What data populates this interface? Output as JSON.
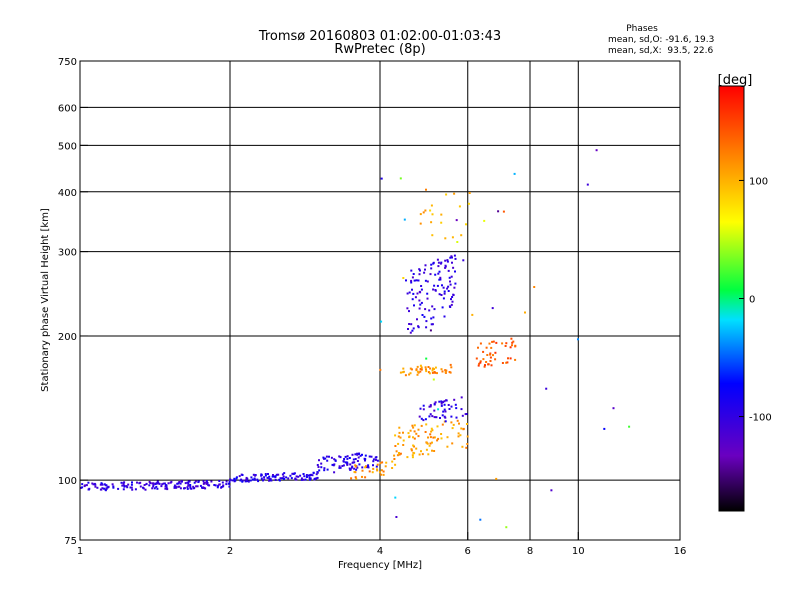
{
  "chart_data": {
    "type": "scatter",
    "title": "Tromsø 20160803 01:02:00-01:03:43",
    "subtitle": "RwPretec (8p)",
    "xlabel": "Frequency [MHz]",
    "ylabel": "Stationary phase Virtual Height [km]",
    "x_scale": "log",
    "y_scale": "log",
    "xlim": [
      1,
      16
    ],
    "ylim": [
      75,
      750
    ],
    "x_ticks": [
      1,
      2,
      4,
      6,
      8,
      10,
      16
    ],
    "x_tick_labels": [
      "1",
      "2",
      "4",
      "6",
      "8",
      "10",
      "16"
    ],
    "y_ticks": [
      75,
      100,
      200,
      300,
      400,
      500,
      600,
      750
    ],
    "y_tick_labels": [
      "75",
      "100",
      "200",
      "300",
      "400",
      "500",
      "600",
      "750"
    ],
    "grid": true,
    "stats": {
      "heading": "Phases",
      "line_o": "mean, sd,O: -91.6, 19.3",
      "line_x": "mean, sd,X:  93.5, 22.6"
    },
    "colorbar": {
      "label": "[deg]",
      "range": [
        -180,
        180
      ],
      "ticks": [
        100,
        0,
        -100
      ],
      "tick_labels": [
        "100",
        "0",
        "-100"
      ]
    },
    "clusters": [
      {
        "name": "low-frequency trace",
        "f_range": [
          1.0,
          2.0
        ],
        "h_range": [
          95,
          100
        ],
        "phase": -100,
        "count": 170
      },
      {
        "name": "mid-frequency trace",
        "f_range": [
          2.0,
          3.0
        ],
        "h_range": [
          99,
          104
        ],
        "phase": -95,
        "count": 110
      },
      {
        "name": "rising trace",
        "f_range": [
          3.0,
          4.0
        ],
        "h_range": [
          103,
          115
        ],
        "phase": -95,
        "count": 90
      },
      {
        "name": "yellow lower trace",
        "f_range": [
          3.5,
          4.3
        ],
        "h_range": [
          100,
          110
        ],
        "phase": 115,
        "count": 30
      },
      {
        "name": "yellow main trace",
        "f_range": [
          4.2,
          6.0
        ],
        "h_range": [
          110,
          135
        ],
        "phase": 110,
        "count": 90
      },
      {
        "name": "yellow mid band",
        "f_range": [
          4.4,
          5.6
        ],
        "h_range": [
          165,
          175
        ],
        "phase": 115,
        "count": 45
      },
      {
        "name": "blue F-layer cluster",
        "f_range": [
          4.5,
          5.7
        ],
        "h_range": [
          200,
          300
        ],
        "phase": -100,
        "count": 120
      },
      {
        "name": "blue lower cluster",
        "f_range": [
          4.8,
          6.0
        ],
        "h_range": [
          130,
          150
        ],
        "phase": -100,
        "count": 50
      },
      {
        "name": "orange high cluster",
        "f_range": [
          6.2,
          7.5
        ],
        "h_range": [
          170,
          200
        ],
        "phase": 140,
        "count": 45
      },
      {
        "name": "scattered high",
        "f_range": [
          4.8,
          6.2
        ],
        "h_range": [
          300,
          420
        ],
        "phase": 100,
        "count": 20
      },
      {
        "name": "scattered isolated",
        "f_range": [
          4.0,
          13.0
        ],
        "h_range": [
          78,
          490
        ],
        "phase": 0,
        "count": 35
      }
    ]
  }
}
